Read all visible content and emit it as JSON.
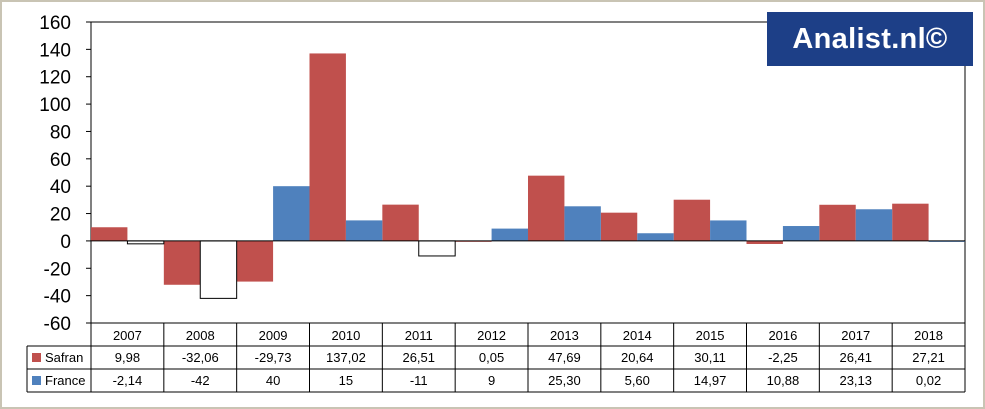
{
  "logo_text": "Analist.nl©",
  "colors": {
    "Safran": "#c0504d",
    "France": "#4f81bd",
    "grid": "#000000"
  },
  "chart_data": {
    "type": "bar",
    "categories": [
      "2007",
      "2008",
      "2009",
      "2010",
      "2011",
      "2012",
      "2013",
      "2014",
      "2015",
      "2016",
      "2017",
      "2018"
    ],
    "series": [
      {
        "name": "Safran",
        "values": [
          9.98,
          -32.06,
          -29.73,
          137.02,
          26.51,
          0.05,
          47.69,
          20.64,
          30.11,
          -2.25,
          26.41,
          27.21
        ],
        "labels": [
          "9,98",
          "-32,06",
          "-29,73",
          "137,02",
          "26,51",
          "0,05",
          "47,69",
          "20,64",
          "30,11",
          "-2,25",
          "26,41",
          "27,21"
        ]
      },
      {
        "name": "France",
        "values": [
          -2.14,
          -42,
          40,
          15,
          -11,
          9,
          25.3,
          5.6,
          14.97,
          10.88,
          23.13,
          0.02
        ],
        "labels": [
          "-2,14",
          "-42",
          "40",
          "15",
          "-11",
          "9",
          "25,30",
          "5,60",
          "14,97",
          "10,88",
          "23,13",
          "0,02"
        ]
      }
    ],
    "yticks": [
      "160",
      "140",
      "120",
      "100",
      "80",
      "60",
      "40",
      "20",
      "0",
      "-20",
      "-40",
      "-60"
    ],
    "ylim": [
      -60,
      160
    ],
    "grid": false,
    "legend": "data-table"
  }
}
